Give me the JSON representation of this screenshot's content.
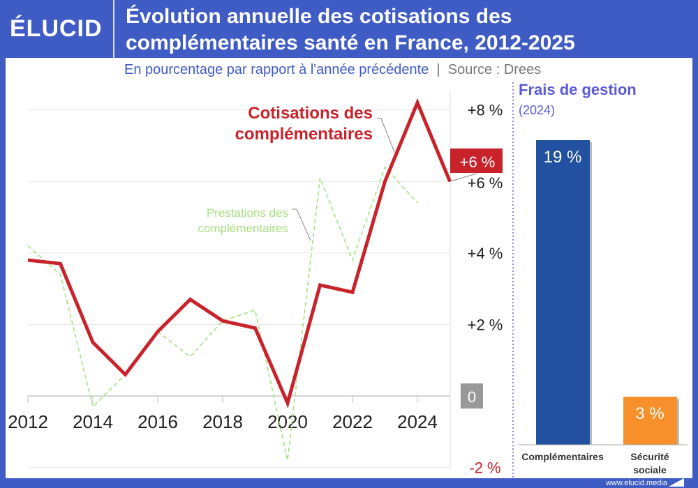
{
  "header": {
    "logo": "ÉLUCID",
    "title": "Évolution annuelle des cotisations des complémentaires santé en France, 2012-2025",
    "subtitle": "En pourcentage par rapport à l'année précédente",
    "source": "Source : Drees",
    "footer": "www.elucid.media"
  },
  "colors": {
    "brand": "#3f5bc4",
    "cotisations": "#c8232b",
    "prestations": "#a6e07f",
    "bar_complementaires": "#22519f",
    "bar_secu": "#f7902a"
  },
  "chart_data": [
    {
      "type": "line",
      "xlim": [
        2012,
        2025
      ],
      "ylim": [
        -2,
        8
      ],
      "grid": true,
      "x_ticks": [
        "2012",
        "2014",
        "2016",
        "2018",
        "2020",
        "2022",
        "2024"
      ],
      "y_ticks": [
        "-2 %",
        "0",
        "+2 %",
        "+4 %",
        "+6 %",
        "+8 %"
      ],
      "annotation": "+6 %",
      "series": [
        {
          "name": "Cotisations des complémentaires",
          "x": [
            2012,
            2013,
            2014,
            2015,
            2016,
            2017,
            2018,
            2019,
            2020,
            2021,
            2022,
            2023,
            2024,
            2025
          ],
          "values": [
            3.8,
            3.7,
            1.5,
            0.6,
            1.8,
            2.7,
            2.1,
            1.9,
            -0.2,
            3.1,
            2.9,
            6.0,
            8.2,
            6.0
          ]
        },
        {
          "name": "Prestations des complémentaires",
          "x": [
            2012,
            2013,
            2014,
            2015,
            2016,
            2017,
            2018,
            2019,
            2020,
            2021,
            2022,
            2023,
            2024
          ],
          "values": [
            4.2,
            3.4,
            -0.3,
            0.6,
            1.8,
            1.1,
            2.1,
            2.4,
            -1.8,
            6.1,
            3.8,
            6.4,
            5.4
          ]
        }
      ]
    },
    {
      "type": "bar",
      "title": "Frais de gestion",
      "subtitle": "(2024)",
      "categories": [
        "Complémentaires",
        "Sécurité sociale"
      ],
      "values": [
        19,
        3
      ],
      "labels": [
        "19 %",
        "3 %"
      ]
    }
  ]
}
